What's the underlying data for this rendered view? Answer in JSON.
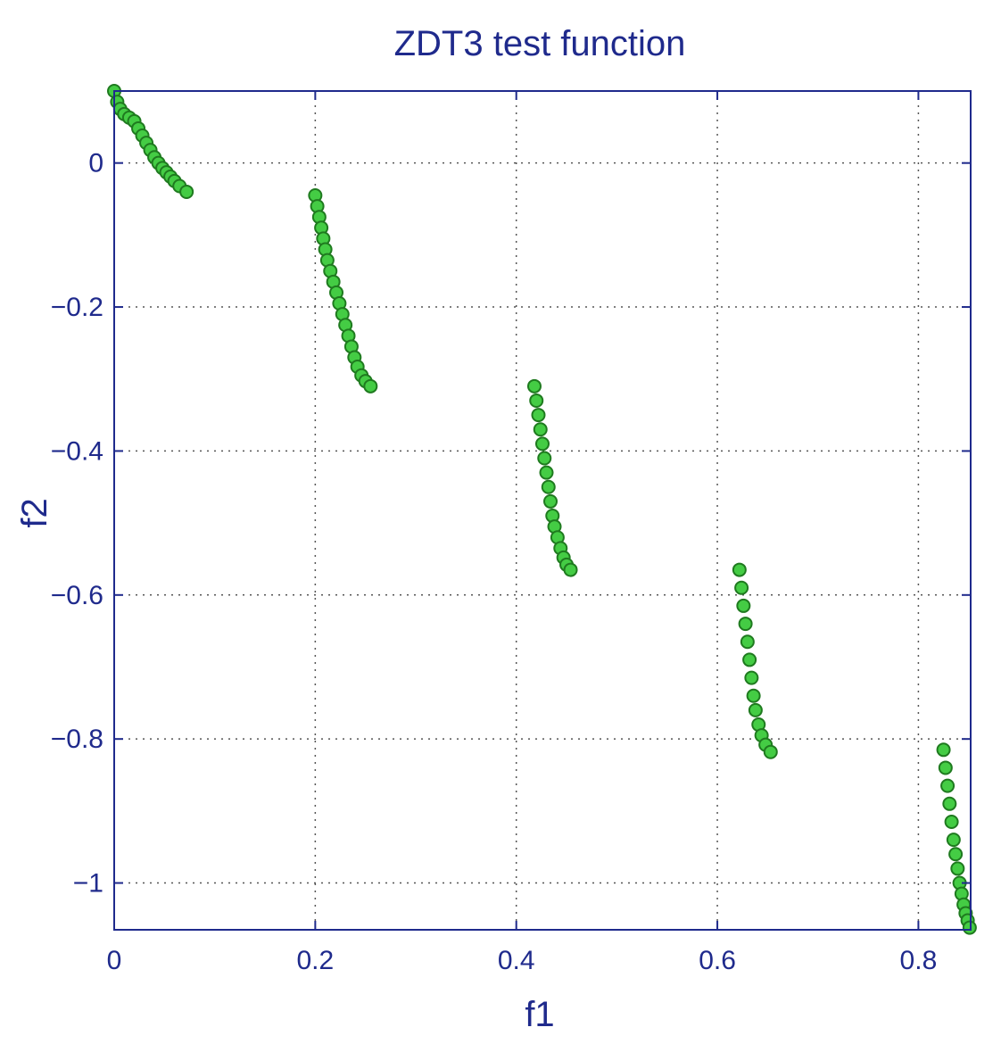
{
  "chart_data": {
    "type": "scatter",
    "title": "ZDT3 test function",
    "xlabel": "f1",
    "ylabel": "f2",
    "xlim": [
      0,
      0.852
    ],
    "ylim": [
      -1.065,
      0.1
    ],
    "xticks": [
      0,
      0.2,
      0.4,
      0.6,
      0.8
    ],
    "xtick_labels": [
      "0",
      "0.2",
      "0.4",
      "0.6",
      "0.8"
    ],
    "yticks": [
      0,
      -0.2,
      -0.4,
      -0.6,
      -0.8,
      -1
    ],
    "ytick_labels": [
      "0",
      "−0.2",
      "−0.4",
      "−0.6",
      "−0.8",
      "−1"
    ],
    "grid": true,
    "legend": "none",
    "colors": {
      "marker_fill": "#44cc44",
      "marker_edge": "#1f7a1f",
      "axis": "#1f2a8c",
      "grid": "#555555"
    },
    "series": [
      {
        "points": [
          [
            0.0,
            0.1
          ],
          [
            0.003,
            0.085
          ],
          [
            0.006,
            0.075
          ],
          [
            0.01,
            0.068
          ],
          [
            0.015,
            0.063
          ],
          [
            0.02,
            0.058
          ],
          [
            0.024,
            0.048
          ],
          [
            0.028,
            0.038
          ],
          [
            0.032,
            0.028
          ],
          [
            0.036,
            0.018
          ],
          [
            0.04,
            0.008
          ],
          [
            0.044,
            0.0
          ],
          [
            0.048,
            -0.007
          ],
          [
            0.052,
            -0.013
          ],
          [
            0.056,
            -0.019
          ],
          [
            0.06,
            -0.025
          ],
          [
            0.065,
            -0.032
          ],
          [
            0.072,
            -0.04
          ],
          [
            0.2,
            -0.045
          ],
          [
            0.202,
            -0.06
          ],
          [
            0.204,
            -0.075
          ],
          [
            0.206,
            -0.09
          ],
          [
            0.208,
            -0.105
          ],
          [
            0.21,
            -0.12
          ],
          [
            0.212,
            -0.135
          ],
          [
            0.215,
            -0.15
          ],
          [
            0.218,
            -0.165
          ],
          [
            0.221,
            -0.18
          ],
          [
            0.224,
            -0.195
          ],
          [
            0.227,
            -0.21
          ],
          [
            0.23,
            -0.225
          ],
          [
            0.233,
            -0.24
          ],
          [
            0.236,
            -0.255
          ],
          [
            0.239,
            -0.27
          ],
          [
            0.242,
            -0.283
          ],
          [
            0.246,
            -0.295
          ],
          [
            0.25,
            -0.303
          ],
          [
            0.255,
            -0.31
          ],
          [
            0.418,
            -0.31
          ],
          [
            0.42,
            -0.33
          ],
          [
            0.422,
            -0.35
          ],
          [
            0.424,
            -0.37
          ],
          [
            0.426,
            -0.39
          ],
          [
            0.428,
            -0.41
          ],
          [
            0.43,
            -0.43
          ],
          [
            0.432,
            -0.45
          ],
          [
            0.434,
            -0.47
          ],
          [
            0.436,
            -0.49
          ],
          [
            0.438,
            -0.505
          ],
          [
            0.441,
            -0.52
          ],
          [
            0.444,
            -0.535
          ],
          [
            0.447,
            -0.548
          ],
          [
            0.45,
            -0.558
          ],
          [
            0.454,
            -0.565
          ],
          [
            0.622,
            -0.565
          ],
          [
            0.624,
            -0.59
          ],
          [
            0.626,
            -0.615
          ],
          [
            0.628,
            -0.64
          ],
          [
            0.63,
            -0.665
          ],
          [
            0.632,
            -0.69
          ],
          [
            0.634,
            -0.715
          ],
          [
            0.636,
            -0.74
          ],
          [
            0.638,
            -0.76
          ],
          [
            0.641,
            -0.78
          ],
          [
            0.644,
            -0.795
          ],
          [
            0.648,
            -0.808
          ],
          [
            0.653,
            -0.818
          ],
          [
            0.825,
            -0.815
          ],
          [
            0.827,
            -0.84
          ],
          [
            0.829,
            -0.865
          ],
          [
            0.831,
            -0.89
          ],
          [
            0.833,
            -0.915
          ],
          [
            0.835,
            -0.94
          ],
          [
            0.837,
            -0.96
          ],
          [
            0.839,
            -0.98
          ],
          [
            0.841,
            -1.0
          ],
          [
            0.843,
            -1.015
          ],
          [
            0.845,
            -1.03
          ],
          [
            0.847,
            -1.042
          ],
          [
            0.849,
            -1.052
          ],
          [
            0.851,
            -1.062
          ]
        ]
      }
    ]
  }
}
